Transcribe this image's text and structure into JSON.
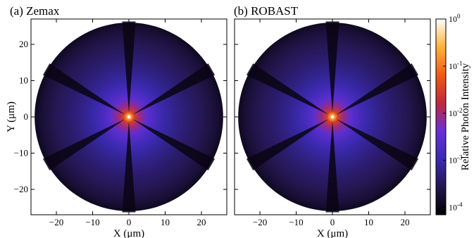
{
  "chart_data": [
    {
      "type": "heatmap",
      "title": "(a) Zemax",
      "xlabel": "X (μm)",
      "ylabel": "Y (μm)",
      "xlim": [
        -27,
        27
      ],
      "ylim": [
        -27,
        27
      ],
      "xticks": [
        -20,
        -10,
        0,
        10,
        20
      ],
      "yticks": [
        -20,
        -10,
        0,
        10,
        20
      ],
      "xtick_labels": [
        "−20",
        "−10",
        "0",
        "10",
        "20"
      ],
      "ytick_labels": [
        "−20",
        "−10",
        "0",
        "10",
        "20"
      ],
      "spot_radius": 26,
      "radial_profile": [
        {
          "r": 0.0,
          "intensity": 1.0
        },
        {
          "r": 0.6,
          "intensity": 0.2
        },
        {
          "r": 1.5,
          "intensity": 0.03
        },
        {
          "r": 3.0,
          "intensity": 0.009
        },
        {
          "r": 5.0,
          "intensity": 0.003
        },
        {
          "r": 7.5,
          "intensity": 0.0015
        },
        {
          "r": 10.0,
          "intensity": 0.0009
        },
        {
          "r": 13.0,
          "intensity": 0.0006
        },
        {
          "r": 16.5,
          "intensity": 0.0004
        },
        {
          "r": 20.0,
          "intensity": 0.0003
        },
        {
          "r": 24.0,
          "intensity": 0.00018
        },
        {
          "r": 26.0,
          "intensity": 0.00012
        }
      ],
      "spider_shadow_angles_deg": [
        90,
        30,
        -30,
        -90,
        -150,
        150
      ],
      "grid": false
    },
    {
      "type": "heatmap",
      "title": "(b) ROBAST",
      "xlabel": "X (μm)",
      "ylabel": "",
      "xlim": [
        -27,
        27
      ],
      "ylim": [
        -27,
        27
      ],
      "xticks": [
        -20,
        -10,
        0,
        10,
        20
      ],
      "yticks": [
        -20,
        -10,
        0,
        10,
        20
      ],
      "xtick_labels": [
        "−20",
        "−10",
        "0",
        "10",
        "20"
      ],
      "ytick_labels": [],
      "spot_radius": 26,
      "radial_profile": [
        {
          "r": 0.0,
          "intensity": 1.0
        },
        {
          "r": 0.6,
          "intensity": 0.2
        },
        {
          "r": 1.5,
          "intensity": 0.03
        },
        {
          "r": 3.0,
          "intensity": 0.009
        },
        {
          "r": 5.0,
          "intensity": 0.003
        },
        {
          "r": 7.5,
          "intensity": 0.0015
        },
        {
          "r": 10.0,
          "intensity": 0.0009
        },
        {
          "r": 13.0,
          "intensity": 0.0006
        },
        {
          "r": 16.5,
          "intensity": 0.0004
        },
        {
          "r": 20.0,
          "intensity": 0.0003
        },
        {
          "r": 24.0,
          "intensity": 0.00018
        },
        {
          "r": 26.0,
          "intensity": 0.00012
        }
      ],
      "spider_shadow_angles_deg": [
        90,
        30,
        -30,
        -90,
        -150,
        150
      ],
      "grid": false
    }
  ],
  "colorbar": {
    "label": "Relative Photon Intensity",
    "scale": "log",
    "range": [
      7e-05,
      1
    ],
    "colormap": "gnuplot2-like",
    "colors": [
      "#000000",
      "#24174f",
      "#3a2ab3",
      "#6a2fd8",
      "#c0283a",
      "#f05a14",
      "#ffb23a",
      "#ffffff"
    ],
    "ticks": [
      {
        "value": 1,
        "base": "10",
        "exp": "0"
      },
      {
        "value": 0.1,
        "base": "10",
        "exp": "-1"
      },
      {
        "value": 0.01,
        "base": "10",
        "exp": "-2"
      },
      {
        "value": 0.001,
        "base": "10",
        "exp": "-3"
      },
      {
        "value": 0.0001,
        "base": "10",
        "exp": "-4"
      }
    ]
  }
}
